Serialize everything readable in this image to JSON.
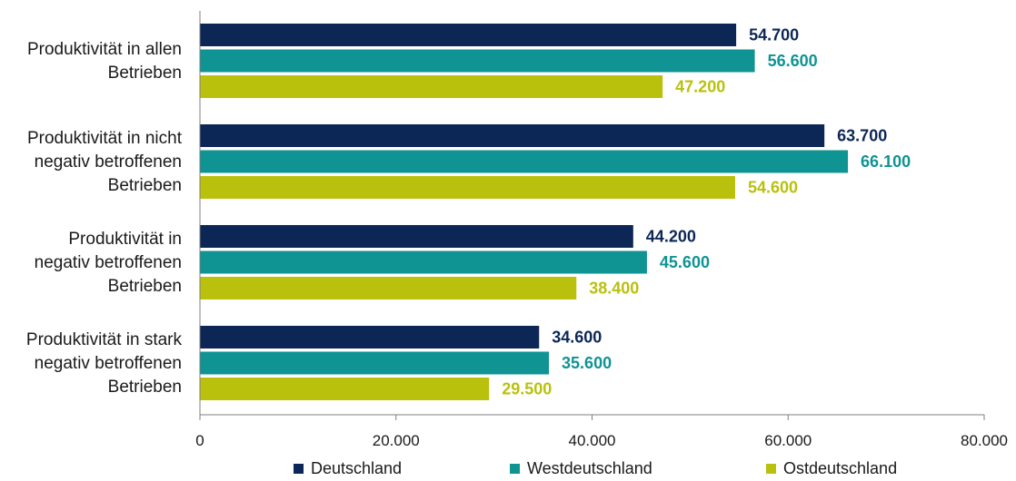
{
  "chart_data": {
    "type": "bar",
    "orientation": "horizontal",
    "categories": [
      [
        "Produktivität in allen",
        "Betrieben"
      ],
      [
        "Produktivität in nicht",
        "negativ betroffenen",
        "Betrieben"
      ],
      [
        "Produktivität in",
        "negativ betroffenen",
        "Betrieben"
      ],
      [
        "Produktivität in stark",
        "negativ betroffenen",
        "Betrieben"
      ]
    ],
    "series": [
      {
        "name": "Deutschland",
        "color": "#0c2756",
        "values": [
          54700,
          63700,
          44200,
          34600
        ],
        "labels": [
          "54.700",
          "63.700",
          "44.200",
          "34.600"
        ]
      },
      {
        "name": "Westdeutschland",
        "color": "#0f9393",
        "values": [
          56600,
          66100,
          45600,
          35600
        ],
        "labels": [
          "56.600",
          "66.100",
          "45.600",
          "35.600"
        ]
      },
      {
        "name": "Ostdeutschland",
        "color": "#b9c10d",
        "values": [
          47200,
          54600,
          38400,
          29500
        ],
        "labels": [
          "47.200",
          "54.600",
          "38.400",
          "29.500"
        ]
      }
    ],
    "xlim": [
      0,
      80000
    ],
    "xticks": [
      0,
      20000,
      40000,
      60000,
      80000
    ],
    "xtick_labels": [
      "0",
      "20.000",
      "40.000",
      "60.000",
      "80.000"
    ],
    "grid": false,
    "legend_position": "bottom"
  }
}
